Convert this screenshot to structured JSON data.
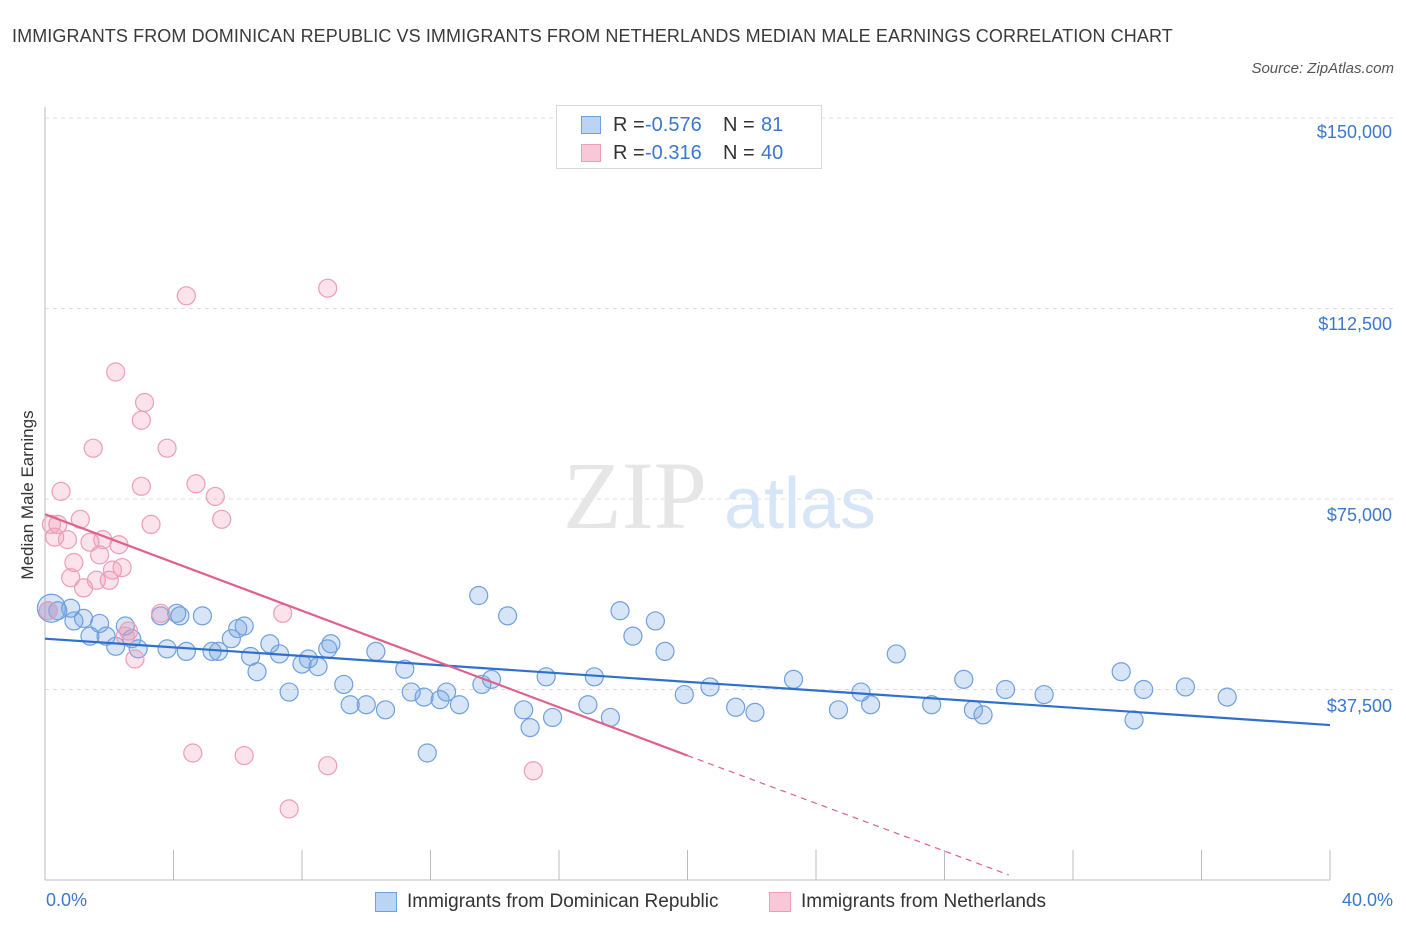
{
  "title": "IMMIGRANTS FROM DOMINICAN REPUBLIC VS IMMIGRANTS FROM NETHERLANDS MEDIAN MALE EARNINGS CORRELATION CHART",
  "source": "Source: ZipAtlas.com",
  "watermark": {
    "zip": "ZIP",
    "atlas": "atlas"
  },
  "legend": {
    "series1": {
      "r_label": "R =",
      "r_value": "-0.576",
      "n_label": "N =",
      "n_value": "81"
    },
    "series2": {
      "r_label": "R =",
      "r_value": "-0.316",
      "n_label": "N =",
      "n_value": "40"
    }
  },
  "colors": {
    "blue": "#6fa0e0",
    "blue_line": "#2f6fce",
    "pink": "#ee9cb8",
    "pink_line": "#e0608e",
    "grid": "#dddddd",
    "tick_text": "#3a78d0"
  },
  "chart_data": {
    "type": "scatter",
    "title": "IMMIGRANTS FROM DOMINICAN REPUBLIC VS IMMIGRANTS FROM NETHERLANDS MEDIAN MALE EARNINGS CORRELATION CHART",
    "xlabel": "",
    "ylabel": "Median Male Earnings",
    "xlim": [
      0,
      40
    ],
    "ylim": [
      0,
      150000
    ],
    "x_tick_labels": [
      "0.0%",
      "40.0%"
    ],
    "y_ticks": [
      37500,
      75000,
      112500,
      150000
    ],
    "y_tick_labels": [
      "$37,500",
      "$75,000",
      "$112,500",
      "$150,000"
    ],
    "grid": true,
    "legend_position": "top-center and bottom",
    "series": [
      {
        "name": "Immigrants from Dominican Republic",
        "color": "#6fa0e0",
        "trend": {
          "x": [
            0,
            40
          ],
          "y": [
            47500,
            30500
          ],
          "style": "solid"
        },
        "points": [
          [
            0.2,
            53500
          ],
          [
            0.4,
            53000
          ],
          [
            0.8,
            53500
          ],
          [
            0.9,
            51000
          ],
          [
            1.2,
            51500
          ],
          [
            1.4,
            48000
          ],
          [
            1.7,
            50500
          ],
          [
            1.9,
            48000
          ],
          [
            2.2,
            46000
          ],
          [
            2.5,
            50000
          ],
          [
            2.7,
            47500
          ],
          [
            2.9,
            45500
          ],
          [
            3.6,
            52000
          ],
          [
            3.8,
            45500
          ],
          [
            4.1,
            52500
          ],
          [
            4.4,
            45000
          ],
          [
            4.9,
            52000
          ],
          [
            5.2,
            45000
          ],
          [
            5.4,
            45000
          ],
          [
            5.8,
            47500
          ],
          [
            6.0,
            49500
          ],
          [
            6.2,
            50000
          ],
          [
            6.4,
            44000
          ],
          [
            6.6,
            41000
          ],
          [
            7.0,
            46500
          ],
          [
            7.3,
            44500
          ],
          [
            7.6,
            37000
          ],
          [
            8.0,
            42500
          ],
          [
            8.2,
            43500
          ],
          [
            8.5,
            42000
          ],
          [
            8.8,
            45500
          ],
          [
            8.9,
            46500
          ],
          [
            9.3,
            38500
          ],
          [
            9.5,
            34500
          ],
          [
            10.0,
            34500
          ],
          [
            10.3,
            45000
          ],
          [
            10.6,
            33500
          ],
          [
            11.2,
            41500
          ],
          [
            11.4,
            37000
          ],
          [
            11.8,
            36000
          ],
          [
            11.9,
            25000
          ],
          [
            12.3,
            35500
          ],
          [
            12.5,
            37000
          ],
          [
            12.9,
            34500
          ],
          [
            13.5,
            56000
          ],
          [
            13.6,
            38500
          ],
          [
            13.9,
            39500
          ],
          [
            14.4,
            52000
          ],
          [
            14.9,
            33500
          ],
          [
            15.1,
            30000
          ],
          [
            15.6,
            40000
          ],
          [
            15.8,
            32000
          ],
          [
            16.9,
            34500
          ],
          [
            17.1,
            40000
          ],
          [
            17.6,
            32000
          ],
          [
            17.9,
            53000
          ],
          [
            18.3,
            48000
          ],
          [
            19.0,
            51000
          ],
          [
            19.3,
            45000
          ],
          [
            19.9,
            36500
          ],
          [
            20.7,
            38000
          ],
          [
            21.5,
            34000
          ],
          [
            22.1,
            33000
          ],
          [
            23.3,
            39500
          ],
          [
            24.7,
            33500
          ],
          [
            25.4,
            37000
          ],
          [
            25.7,
            34500
          ],
          [
            26.5,
            44500
          ],
          [
            27.6,
            34500
          ],
          [
            28.6,
            39500
          ],
          [
            28.9,
            33500
          ],
          [
            29.2,
            32500
          ],
          [
            29.9,
            37500
          ],
          [
            31.1,
            36500
          ],
          [
            33.5,
            41000
          ],
          [
            33.9,
            31500
          ],
          [
            34.2,
            37500
          ],
          [
            35.5,
            38000
          ],
          [
            36.8,
            36000
          ],
          [
            0.1,
            53000
          ],
          [
            4.2,
            52000
          ]
        ]
      },
      {
        "name": "Immigrants from Netherlands",
        "color": "#ee9cb8",
        "trend": {
          "x": [
            0,
            20
          ],
          "y": [
            72000,
            24500
          ],
          "style": "solid",
          "extension_to": [
            30,
            1000
          ]
        },
        "points": [
          [
            0.1,
            53000
          ],
          [
            0.3,
            67500
          ],
          [
            0.4,
            70000
          ],
          [
            0.5,
            76500
          ],
          [
            0.7,
            67000
          ],
          [
            0.8,
            59500
          ],
          [
            0.9,
            62500
          ],
          [
            1.1,
            71000
          ],
          [
            1.2,
            57500
          ],
          [
            1.4,
            66500
          ],
          [
            1.5,
            85000
          ],
          [
            1.6,
            59000
          ],
          [
            1.7,
            64000
          ],
          [
            1.8,
            67000
          ],
          [
            2.0,
            59000
          ],
          [
            2.1,
            61000
          ],
          [
            2.2,
            100000
          ],
          [
            2.3,
            66000
          ],
          [
            2.4,
            61500
          ],
          [
            2.5,
            48000
          ],
          [
            2.6,
            49000
          ],
          [
            2.8,
            43500
          ],
          [
            3.0,
            90500
          ],
          [
            3.0,
            77500
          ],
          [
            3.1,
            94000
          ],
          [
            3.3,
            70000
          ],
          [
            3.6,
            52500
          ],
          [
            3.8,
            85000
          ],
          [
            4.4,
            115000
          ],
          [
            4.6,
            25000
          ],
          [
            4.7,
            78000
          ],
          [
            5.3,
            75500
          ],
          [
            5.5,
            71000
          ],
          [
            6.2,
            24500
          ],
          [
            7.4,
            52500
          ],
          [
            7.6,
            14000
          ],
          [
            8.8,
            116500
          ],
          [
            8.8,
            22500
          ],
          [
            15.2,
            21500
          ],
          [
            0.2,
            70000
          ]
        ]
      }
    ]
  },
  "bottom_legend": {
    "series1_label": "Immigrants from Dominican Republic",
    "series2_label": "Immigrants from Netherlands"
  }
}
